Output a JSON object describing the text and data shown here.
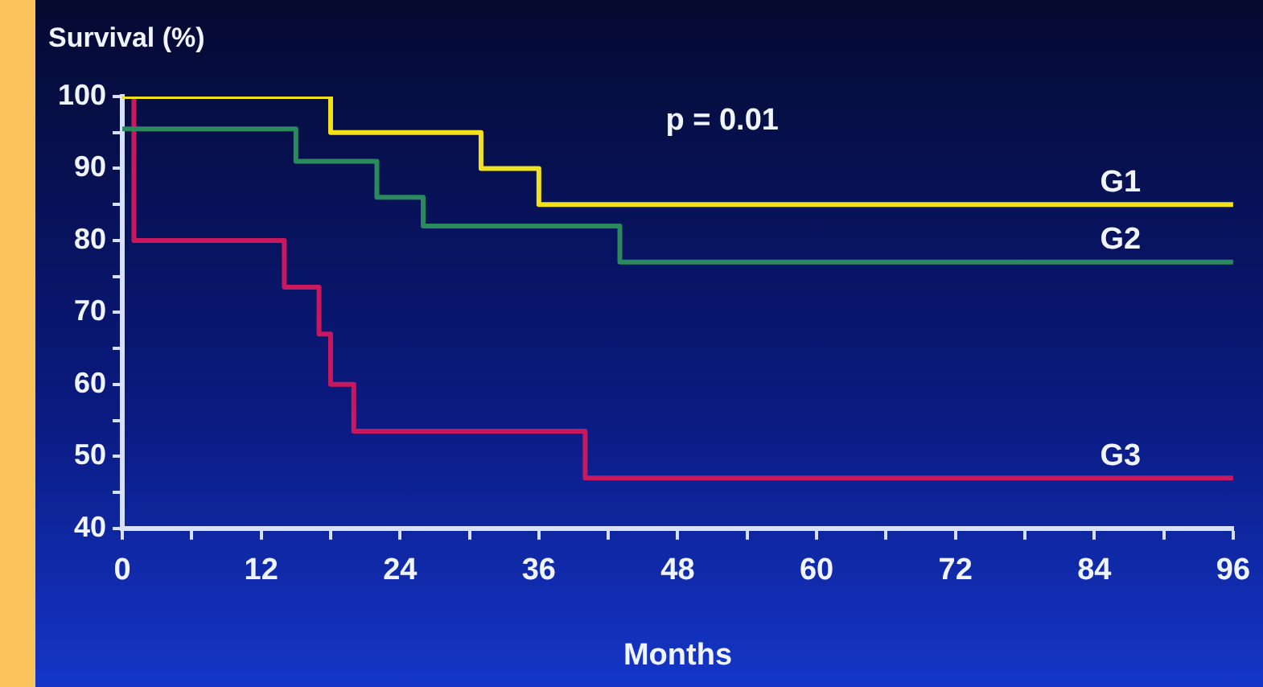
{
  "chart_data": {
    "type": "step",
    "xlabel": "Months",
    "ylabel": "Survival (%)",
    "annotations": [
      "p = 0.01"
    ],
    "xlim": [
      0,
      96
    ],
    "ylim": [
      40,
      100
    ],
    "xticks": [
      0,
      {
        "value": 6,
        "label": null
      },
      12,
      {
        "value": 18,
        "label": null
      },
      24,
      {
        "value": 30,
        "label": null
      },
      36,
      {
        "value": 42,
        "label": null
      },
      48,
      {
        "value": 54,
        "label": null
      },
      60,
      {
        "value": 66,
        "label": null
      },
      72,
      {
        "value": 78,
        "label": null
      },
      84,
      {
        "value": 90,
        "label": null
      },
      96
    ],
    "yticks": [
      40,
      {
        "value": 45,
        "label": null
      },
      50,
      {
        "value": 55,
        "label": null
      },
      60,
      {
        "value": 65,
        "label": null
      },
      70,
      {
        "value": 75,
        "label": null
      },
      80,
      {
        "value": 85,
        "label": null
      },
      90,
      {
        "value": 95,
        "label": null
      },
      100
    ],
    "grid": false,
    "legend": false,
    "marker": "none",
    "line_style": "solid",
    "series": [
      {
        "name": "G1",
        "color": "#f2e21e",
        "x": [
          0,
          18,
          31,
          36,
          96
        ],
        "values": [
          100,
          95,
          90,
          85,
          85
        ]
      },
      {
        "name": "G2",
        "color": "#2a8a5e",
        "x": [
          0,
          15,
          22,
          26,
          43,
          96
        ],
        "values": [
          95.5,
          91,
          86,
          82,
          77,
          77
        ]
      },
      {
        "name": "G3",
        "color": "#c8185e",
        "x": [
          0,
          1,
          14,
          17,
          18,
          20,
          40,
          96
        ],
        "values": [
          100,
          80,
          73.5,
          67,
          60,
          53.5,
          47,
          47
        ]
      }
    ]
  }
}
